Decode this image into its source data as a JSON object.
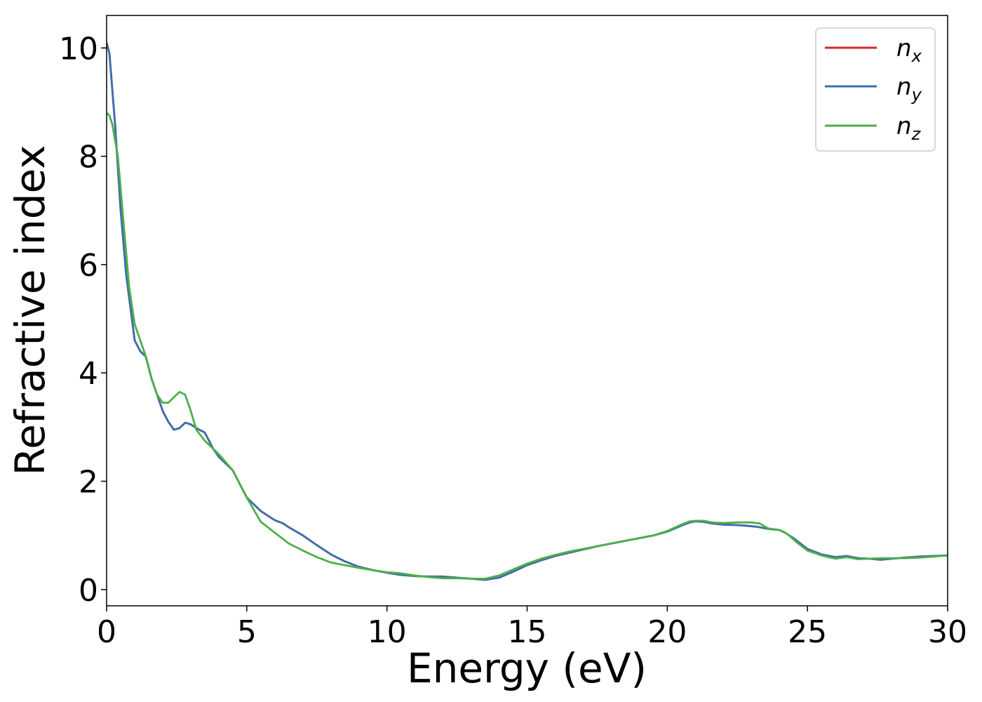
{
  "chart_data": {
    "type": "line",
    "xlabel": "Energy (eV)",
    "ylabel": "Refractive index",
    "xlim": [
      0,
      30
    ],
    "ylim": [
      -0.3,
      10.6
    ],
    "xticks": [
      0,
      5,
      10,
      15,
      20,
      25,
      30
    ],
    "yticks": [
      0,
      2,
      4,
      6,
      8,
      10
    ],
    "grid": false,
    "legend_position": "top-right",
    "series": [
      {
        "name": "n",
        "subscript": "x",
        "color": "#d62728",
        "x": [
          0,
          0.1,
          0.3,
          0.5,
          0.7,
          0.9,
          1.0,
          1.2,
          1.4,
          1.6,
          1.8,
          2.0,
          2.2,
          2.4,
          2.6,
          2.8,
          3.0,
          3.2,
          3.5,
          3.8,
          4.0,
          4.5,
          5.0,
          5.5,
          6.0,
          6.3,
          6.5,
          7.0,
          7.5,
          8.0,
          8.5,
          9.0,
          9.5,
          10.0,
          10.5,
          11.0,
          11.5,
          12.0,
          12.5,
          13.0,
          13.5,
          14.0,
          14.5,
          15.0,
          15.5,
          16.0,
          16.5,
          17.0,
          17.5,
          18.0,
          18.5,
          19.0,
          19.5,
          20.0,
          20.5,
          20.8,
          21.0,
          21.3,
          21.6,
          22.0,
          22.5,
          22.8,
          23.2,
          23.6,
          24.0,
          24.2,
          24.5,
          25.0,
          25.5,
          26.0,
          26.4,
          26.8,
          27.2,
          27.6,
          28.0,
          28.5,
          29.0,
          29.5,
          30.0
        ],
        "values": [
          10.1,
          9.9,
          8.6,
          7.0,
          5.8,
          5.0,
          4.6,
          4.4,
          4.3,
          3.9,
          3.6,
          3.3,
          3.1,
          2.95,
          2.98,
          3.08,
          3.05,
          2.98,
          2.9,
          2.6,
          2.45,
          2.2,
          1.7,
          1.45,
          1.28,
          1.22,
          1.15,
          1.0,
          0.82,
          0.65,
          0.52,
          0.42,
          0.36,
          0.31,
          0.27,
          0.25,
          0.24,
          0.24,
          0.22,
          0.2,
          0.18,
          0.22,
          0.33,
          0.45,
          0.54,
          0.62,
          0.68,
          0.74,
          0.8,
          0.85,
          0.9,
          0.95,
          1.0,
          1.07,
          1.18,
          1.24,
          1.26,
          1.25,
          1.22,
          1.2,
          1.19,
          1.18,
          1.16,
          1.12,
          1.1,
          1.05,
          0.95,
          0.75,
          0.65,
          0.6,
          0.62,
          0.58,
          0.57,
          0.55,
          0.57,
          0.59,
          0.61,
          0.62,
          0.63
        ]
      },
      {
        "name": "n",
        "subscript": "y",
        "color": "#3a6fb0",
        "x": [
          0,
          0.1,
          0.3,
          0.5,
          0.7,
          0.9,
          1.0,
          1.2,
          1.4,
          1.6,
          1.8,
          2.0,
          2.2,
          2.4,
          2.6,
          2.8,
          3.0,
          3.2,
          3.5,
          3.8,
          4.0,
          4.5,
          5.0,
          5.5,
          6.0,
          6.3,
          6.5,
          7.0,
          7.5,
          8.0,
          8.5,
          9.0,
          9.5,
          10.0,
          10.5,
          11.0,
          11.5,
          12.0,
          12.5,
          13.0,
          13.5,
          14.0,
          14.5,
          15.0,
          15.5,
          16.0,
          16.5,
          17.0,
          17.5,
          18.0,
          18.5,
          19.0,
          19.5,
          20.0,
          20.5,
          20.8,
          21.0,
          21.3,
          21.6,
          22.0,
          22.5,
          22.8,
          23.2,
          23.6,
          24.0,
          24.2,
          24.5,
          25.0,
          25.5,
          26.0,
          26.4,
          26.8,
          27.2,
          27.6,
          28.0,
          28.5,
          29.0,
          29.5,
          30.0
        ],
        "values": [
          10.1,
          9.9,
          8.6,
          7.0,
          5.8,
          5.0,
          4.6,
          4.4,
          4.3,
          3.9,
          3.6,
          3.3,
          3.1,
          2.95,
          2.98,
          3.08,
          3.05,
          2.98,
          2.9,
          2.6,
          2.45,
          2.2,
          1.7,
          1.45,
          1.28,
          1.22,
          1.15,
          1.0,
          0.82,
          0.65,
          0.52,
          0.42,
          0.36,
          0.31,
          0.27,
          0.25,
          0.24,
          0.24,
          0.22,
          0.2,
          0.18,
          0.22,
          0.33,
          0.45,
          0.54,
          0.62,
          0.68,
          0.74,
          0.8,
          0.85,
          0.9,
          0.95,
          1.0,
          1.07,
          1.18,
          1.24,
          1.26,
          1.25,
          1.22,
          1.2,
          1.19,
          1.18,
          1.16,
          1.12,
          1.1,
          1.05,
          0.95,
          0.75,
          0.65,
          0.6,
          0.62,
          0.58,
          0.57,
          0.55,
          0.57,
          0.59,
          0.61,
          0.62,
          0.63
        ]
      },
      {
        "name": "n",
        "subscript": "z",
        "color": "#4daf4a",
        "x": [
          0,
          0.1,
          0.2,
          0.4,
          0.6,
          0.8,
          1.0,
          1.2,
          1.4,
          1.6,
          1.8,
          2.0,
          2.2,
          2.4,
          2.6,
          2.8,
          3.0,
          3.2,
          3.5,
          3.8,
          4.0,
          4.5,
          5.0,
          5.5,
          6.0,
          6.5,
          7.0,
          7.5,
          8.0,
          8.5,
          9.0,
          9.5,
          10.0,
          10.5,
          11.0,
          11.5,
          12.0,
          12.5,
          13.0,
          13.5,
          14.0,
          14.5,
          15.0,
          15.5,
          16.0,
          16.5,
          17.0,
          17.5,
          18.0,
          18.5,
          19.0,
          19.5,
          20.0,
          20.5,
          20.8,
          21.0,
          21.3,
          21.6,
          22.0,
          22.5,
          23.0,
          23.3,
          23.6,
          24.0,
          24.3,
          24.6,
          25.0,
          25.5,
          26.0,
          26.4,
          26.8,
          27.2,
          27.6,
          28.0,
          28.5,
          29.0,
          29.5,
          30.0
        ],
        "values": [
          8.8,
          8.75,
          8.6,
          8.0,
          6.8,
          5.6,
          4.9,
          4.6,
          4.3,
          3.9,
          3.6,
          3.45,
          3.45,
          3.55,
          3.65,
          3.6,
          3.3,
          2.95,
          2.75,
          2.6,
          2.5,
          2.2,
          1.7,
          1.25,
          1.05,
          0.85,
          0.72,
          0.6,
          0.5,
          0.45,
          0.4,
          0.36,
          0.32,
          0.3,
          0.26,
          0.23,
          0.21,
          0.21,
          0.2,
          0.2,
          0.26,
          0.37,
          0.48,
          0.57,
          0.64,
          0.7,
          0.75,
          0.8,
          0.85,
          0.9,
          0.95,
          1.0,
          1.08,
          1.2,
          1.26,
          1.27,
          1.27,
          1.24,
          1.23,
          1.24,
          1.24,
          1.22,
          1.13,
          1.1,
          1.02,
          0.88,
          0.72,
          0.63,
          0.57,
          0.6,
          0.56,
          0.57,
          0.58,
          0.58,
          0.58,
          0.59,
          0.61,
          0.63
        ]
      }
    ]
  }
}
